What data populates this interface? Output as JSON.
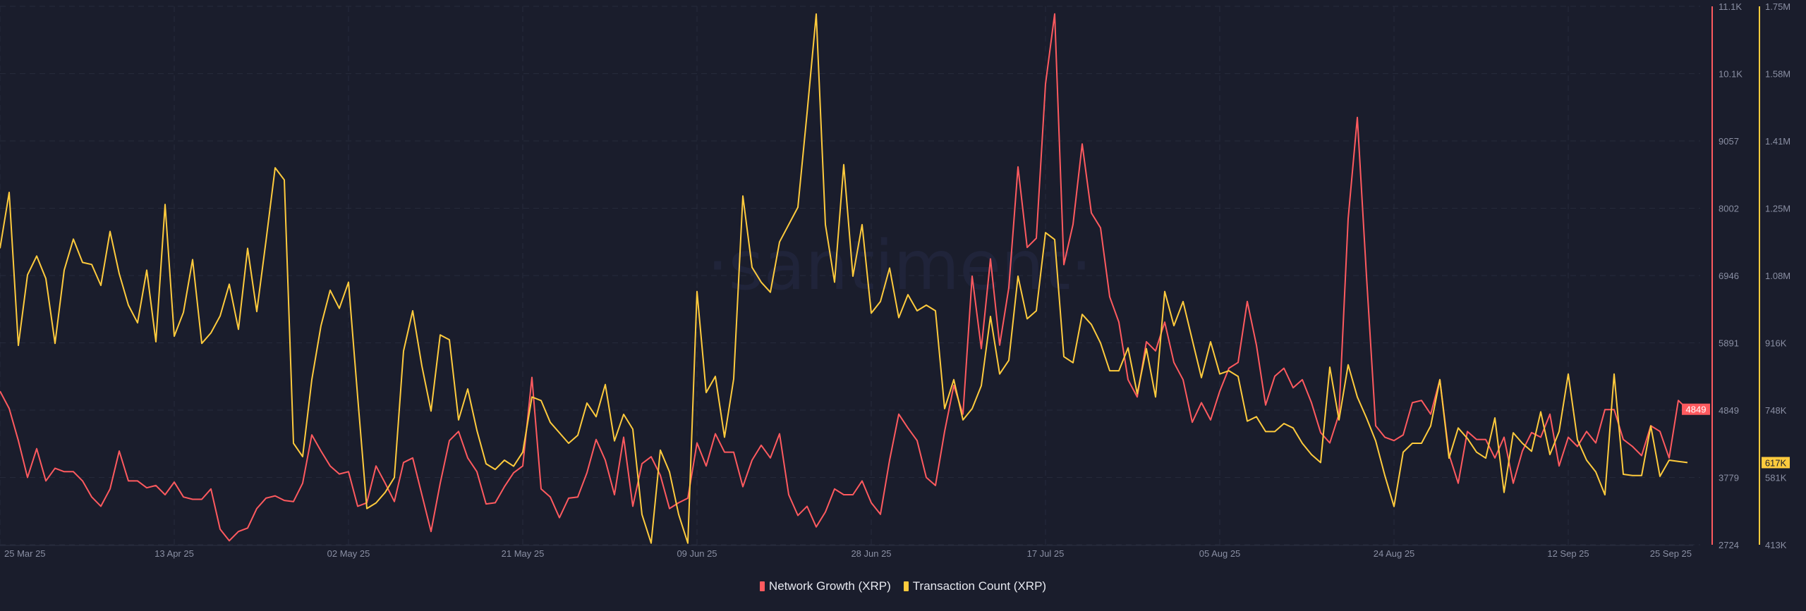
{
  "watermark": "·santiment·",
  "chart_data": {
    "type": "line",
    "title": "",
    "x_start": "25 Mar 25",
    "x_end": "25 Sep 25",
    "x_ticks": [
      "25 Mar 25",
      "13 Apr 25",
      "02 May 25",
      "21 May 25",
      "09 Jun 25",
      "28 Jun 25",
      "17 Jul 25",
      "05 Aug 25",
      "24 Aug 25",
      "12 Sep 25",
      "25 Sep 25"
    ],
    "x_tick_days": [
      0,
      19,
      38,
      57,
      76,
      95,
      114,
      133,
      152,
      171,
      184
    ],
    "grid": true,
    "legend_position": "bottom-center",
    "axes": {
      "left_series": {
        "name": "Network Growth (XRP)",
        "ticks": [
          "11.1K",
          "10.1K",
          "9057",
          "8002",
          "6946",
          "5891",
          "4849",
          "3779",
          "2724"
        ],
        "range": [
          2724,
          11168
        ],
        "last_value_label": "4849"
      },
      "right_series": {
        "name": "Transaction Count (XRP)",
        "ticks": [
          "1.75M",
          "1.58M",
          "1.41M",
          "1.25M",
          "1.08M",
          "916K",
          "748K",
          "581K",
          "413K"
        ],
        "range": [
          413000,
          1750000
        ],
        "last_value_label": "617K"
      }
    },
    "series": [
      {
        "name": "Network Growth (XRP)",
        "color": "#ff5a5f",
        "axis": "left",
        "values": [
          5132,
          4862,
          4357,
          3779,
          4230,
          3725,
          3924,
          3870,
          3870,
          3725,
          3473,
          3328,
          3599,
          4194,
          3725,
          3725,
          3617,
          3653,
          3509,
          3707,
          3473,
          3437,
          3437,
          3599,
          2968,
          2787,
          2932,
          2986,
          3292,
          3455,
          3491,
          3419,
          3401,
          3689,
          4447,
          4194,
          3960,
          3834,
          3870,
          3328,
          3383,
          3960,
          3689,
          3401,
          4014,
          4086,
          3509,
          2932,
          3689,
          4357,
          4501,
          4086,
          3870,
          3364,
          3383,
          3635,
          3852,
          3960,
          5349,
          3599,
          3473,
          3148,
          3455,
          3473,
          3852,
          4375,
          4050,
          3509,
          4411,
          3328,
          3996,
          4104,
          3815,
          3292,
          3383,
          3455,
          4321,
          3960,
          4465,
          4176,
          4176,
          3635,
          4050,
          4285,
          4086,
          4465,
          3509,
          3184,
          3328,
          3004,
          3238,
          3599,
          3509,
          3509,
          3725,
          3383,
          3202,
          4050,
          4772,
          4555,
          4357,
          3779,
          3653,
          4501,
          5223,
          4772,
          6936,
          5800,
          7207,
          5854,
          6756,
          8650,
          7387,
          7532,
          9949,
          11050,
          7117,
          7748,
          9011,
          7929,
          7694,
          6612,
          6215,
          5313,
          5042,
          5908,
          5764,
          6215,
          5583,
          5313,
          4645,
          4952,
          4681,
          5132,
          5493,
          5583,
          6540,
          5854,
          4916,
          5367,
          5493,
          5187,
          5313,
          4952,
          4483,
          4321,
          4772,
          7838,
          9426,
          6936,
          4591,
          4411,
          4357,
          4447,
          4952,
          4988,
          4772,
          5313,
          4140,
          3689,
          4501,
          4375,
          4375,
          4086,
          4411,
          3689,
          4194,
          4483,
          4411,
          4772,
          3960,
          4411,
          4266,
          4501,
          4321,
          4844,
          4844,
          4375,
          4266,
          4122,
          4591,
          4501,
          4086,
          4988,
          4849
        ]
      },
      {
        "name": "Transaction Count (XRP)",
        "color": "#ffcb3d",
        "axis": "right",
        "values": [
          1149000,
          1288000,
          908000,
          1083000,
          1130000,
          1074000,
          913000,
          1095000,
          1172000,
          1114000,
          1109000,
          1057000,
          1191000,
          1086000,
          1008000,
          964000,
          1095000,
          917000,
          1258000,
          931000,
          990000,
          1121000,
          913000,
          939000,
          981000,
          1060000,
          948000,
          1149000,
          992000,
          1167000,
          1349000,
          1319000,
          665000,
          632000,
          823000,
          957000,
          1045000,
          1000000,
          1065000,
          780000,
          503000,
          517000,
          543000,
          580000,
          894000,
          994000,
          857000,
          745000,
          934000,
          922000,
          723000,
          800000,
          697000,
          614000,
          600000,
          623000,
          608000,
          643000,
          780000,
          771000,
          717000,
          691000,
          665000,
          685000,
          765000,
          731000,
          811000,
          671000,
          737000,
          700000,
          488000,
          417000,
          648000,
          594000,
          488000,
          417000,
          1042000,
          791000,
          831000,
          680000,
          825000,
          1279000,
          1102000,
          1065000,
          1040000,
          1165000,
          1208000,
          1251000,
          1485000,
          1731000,
          1208000,
          1065000,
          1357000,
          1080000,
          1208000,
          988000,
          1017000,
          1100000,
          977000,
          1034000,
          994000,
          1008000,
          994000,
          751000,
          823000,
          723000,
          751000,
          808000,
          980000,
          837000,
          871000,
          1080000,
          974000,
          994000,
          1188000,
          1171000,
          880000,
          865000,
          985000,
          960000,
          914000,
          845000,
          845000,
          902000,
          788000,
          900000,
          780000,
          1042000,
          957000,
          1017000,
          922000,
          828000,
          917000,
          837000,
          845000,
          831000,
          720000,
          731000,
          694000,
          694000,
          714000,
          703000,
          665000,
          637000,
          617000,
          854000,
          723000,
          860000,
          780000,
          728000,
          671000,
          585000,
          508000,
          643000,
          665000,
          665000,
          708000,
          823000,
          628000,
          703000,
          677000,
          643000,
          628000,
          728000,
          543000,
          691000,
          665000,
          645000,
          743000,
          637000,
          694000,
          837000,
          674000,
          623000,
          594000,
          537000,
          837000,
          588000,
          585000,
          585000,
          708000,
          583000,
          623000,
          620000,
          617000
        ]
      }
    ]
  }
}
